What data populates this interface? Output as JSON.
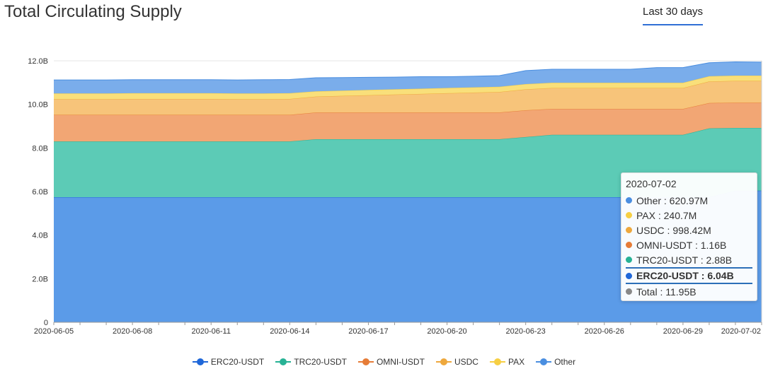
{
  "page": {
    "title": "Total Circulating Supply"
  },
  "range_tab": {
    "label": "Last 30 days"
  },
  "tooltip": {
    "date": "2020-07-02",
    "rows": [
      {
        "text": "Other : 620.97M",
        "color": "#4a8ee0",
        "highlight": false
      },
      {
        "text": "PAX : 240.7M",
        "color": "#f6cf44",
        "highlight": false
      },
      {
        "text": "USDC : 998.42M",
        "color": "#eea83d",
        "highlight": false
      },
      {
        "text": "OMNI-USDT : 1.16B",
        "color": "#e67c37",
        "highlight": false
      },
      {
        "text": "TRC20-USDT : 2.88B",
        "color": "#27b295",
        "highlight": false
      },
      {
        "text": "ERC20-USDT : 6.04B",
        "color": "#1f67d8",
        "highlight": true
      },
      {
        "text": "Total : 11.95B",
        "color": "#888888",
        "highlight": false
      }
    ]
  },
  "chart_data": {
    "type": "area",
    "stacked": true,
    "x": [
      "2020-06-05",
      "2020-06-06",
      "2020-06-07",
      "2020-06-08",
      "2020-06-09",
      "2020-06-10",
      "2020-06-11",
      "2020-06-12",
      "2020-06-13",
      "2020-06-14",
      "2020-06-15",
      "2020-06-16",
      "2020-06-17",
      "2020-06-18",
      "2020-06-19",
      "2020-06-20",
      "2020-06-21",
      "2020-06-22",
      "2020-06-23",
      "2020-06-24",
      "2020-06-25",
      "2020-06-26",
      "2020-06-27",
      "2020-06-28",
      "2020-06-29",
      "2020-06-30",
      "2020-07-01",
      "2020-07-02"
    ],
    "x_tick_labels": [
      "2020-06-05",
      "2020-06-08",
      "2020-06-11",
      "2020-06-14",
      "2020-06-17",
      "2020-06-20",
      "2020-06-23",
      "2020-06-26",
      "2020-06-29",
      "2020-07-02"
    ],
    "y_ticks": [
      "0",
      "2.0B",
      "4.0B",
      "6.0B",
      "8.0B",
      "10.0B",
      "12.0B"
    ],
    "ylim": [
      0,
      12
    ],
    "y_unit": "B",
    "grid": true,
    "legend_position": "bottom-center",
    "series": [
      {
        "name": "ERC20-USDT",
        "fill": "#5b9be8",
        "line": "#1f67d8",
        "values": [
          5.74,
          5.74,
          5.74,
          5.74,
          5.74,
          5.74,
          5.74,
          5.74,
          5.74,
          5.74,
          5.74,
          5.74,
          5.74,
          5.74,
          5.74,
          5.74,
          5.74,
          5.74,
          5.74,
          5.74,
          5.74,
          5.74,
          5.74,
          5.74,
          5.74,
          5.74,
          6.04,
          6.04
        ]
      },
      {
        "name": "TRC20-USDT",
        "fill": "#5ccbb6",
        "line": "#27b295",
        "values": [
          2.56,
          2.56,
          2.56,
          2.56,
          2.56,
          2.56,
          2.56,
          2.56,
          2.56,
          2.56,
          2.66,
          2.66,
          2.66,
          2.66,
          2.66,
          2.66,
          2.66,
          2.66,
          2.76,
          2.86,
          2.86,
          2.86,
          2.86,
          2.86,
          2.86,
          3.16,
          2.88,
          2.88
        ]
      },
      {
        "name": "OMNI-USDT",
        "fill": "#f2a674",
        "line": "#e67c37",
        "values": [
          1.22,
          1.22,
          1.22,
          1.22,
          1.22,
          1.22,
          1.22,
          1.22,
          1.22,
          1.22,
          1.23,
          1.23,
          1.23,
          1.23,
          1.23,
          1.23,
          1.23,
          1.23,
          1.23,
          1.19,
          1.19,
          1.19,
          1.19,
          1.19,
          1.19,
          1.16,
          1.16,
          1.16
        ]
      },
      {
        "name": "USDC",
        "fill": "#f7c47a",
        "line": "#eea83d",
        "values": [
          0.72,
          0.72,
          0.72,
          0.73,
          0.73,
          0.73,
          0.73,
          0.72,
          0.72,
          0.73,
          0.73,
          0.76,
          0.79,
          0.82,
          0.85,
          0.88,
          0.91,
          0.94,
          0.96,
          0.96,
          0.96,
          0.96,
          0.96,
          0.96,
          0.96,
          0.99,
          1.0,
          1.0
        ]
      },
      {
        "name": "PAX",
        "fill": "#f9df7a",
        "line": "#f6cf44",
        "values": [
          0.26,
          0.26,
          0.26,
          0.26,
          0.26,
          0.26,
          0.26,
          0.26,
          0.26,
          0.26,
          0.24,
          0.24,
          0.24,
          0.24,
          0.24,
          0.24,
          0.24,
          0.24,
          0.24,
          0.24,
          0.24,
          0.24,
          0.24,
          0.24,
          0.24,
          0.24,
          0.24,
          0.24
        ]
      },
      {
        "name": "Other",
        "fill": "#7aadeb",
        "line": "#4a8ee0",
        "values": [
          0.62,
          0.62,
          0.62,
          0.62,
          0.62,
          0.62,
          0.62,
          0.62,
          0.63,
          0.63,
          0.62,
          0.6,
          0.58,
          0.56,
          0.55,
          0.52,
          0.51,
          0.51,
          0.62,
          0.62,
          0.62,
          0.62,
          0.62,
          0.7,
          0.7,
          0.62,
          0.63,
          0.62
        ]
      }
    ]
  }
}
